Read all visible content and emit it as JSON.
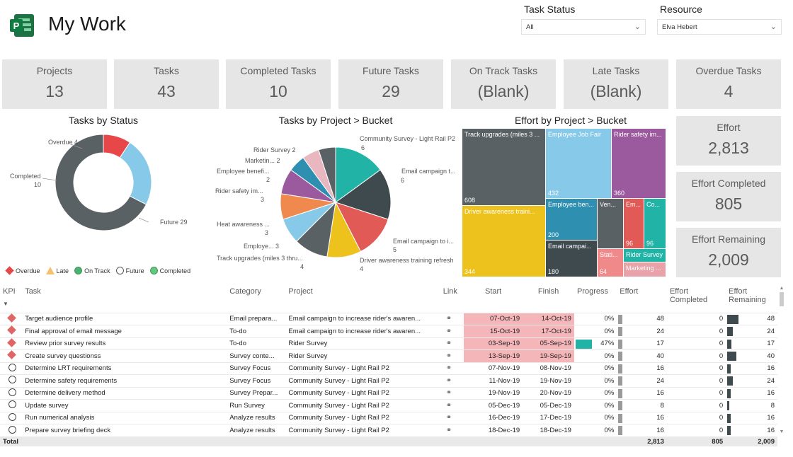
{
  "header": {
    "title": "My Work",
    "logo_icon": "project-logo-icon"
  },
  "filters": {
    "task_status": {
      "label": "Task Status",
      "value": "All"
    },
    "resource": {
      "label": "Resource",
      "value": "Elva Hebert"
    }
  },
  "kpi_cards": [
    {
      "label": "Projects",
      "value": "13"
    },
    {
      "label": "Tasks",
      "value": "43"
    },
    {
      "label": "Completed Tasks",
      "value": "10"
    },
    {
      "label": "Future Tasks",
      "value": "29"
    },
    {
      "label": "On Track Tasks",
      "value": "(Blank)"
    },
    {
      "label": "Late Tasks",
      "value": "(Blank)"
    },
    {
      "label": "Overdue Tasks",
      "value": "4"
    }
  ],
  "effort_cards": [
    {
      "label": "Effort",
      "value": "2,813"
    },
    {
      "label": "Effort Completed",
      "value": "805"
    },
    {
      "label": "Effort Remaining",
      "value": "2,009"
    }
  ],
  "donut": {
    "title": "Tasks by Status",
    "labels": [
      {
        "text": "Overdue 4"
      },
      {
        "text": "Completed"
      },
      {
        "text": "10"
      },
      {
        "text": "Future 29"
      }
    ],
    "legend": [
      {
        "label": "Overdue",
        "color": "#e8474a"
      },
      {
        "label": "Late",
        "color": "#f5c16c"
      },
      {
        "label": "On Track",
        "color": "#4caf74"
      },
      {
        "label": "Future",
        "color": "#ffffff"
      },
      {
        "label": "Completed",
        "color": "#63c77f"
      }
    ]
  },
  "pie": {
    "title": "Tasks by Project > Bucket",
    "labels": [
      "Community Survey - Light Rail P2",
      "6",
      "Rider Survey 2",
      "Marketin... 2",
      "Employee benefi...",
      "2",
      "Rider safety im...",
      "3",
      "Email campaign t...",
      "6",
      "Heat awareness ...",
      "3",
      "Employe... 3",
      "Track upgrades (miles 3 thru...",
      "4",
      "Email campaign to i...",
      "5",
      "Driver awareness training refresh",
      "4"
    ]
  },
  "treemap": {
    "title": "Effort by Project > Bucket",
    "cells": [
      {
        "label": "Track upgrades (miles 3 ...",
        "value": "608",
        "color": "#5a6164"
      },
      {
        "label": "Employee Job Fair",
        "value": "432",
        "color": "#87c9e8"
      },
      {
        "label": "Rider safety im...",
        "value": "360",
        "color": "#9b5a9d"
      },
      {
        "label": "Driver awareness traini...",
        "value": "344",
        "color": "#edc21c"
      },
      {
        "label": "Employee ben...",
        "value": "200",
        "color": "#2e8fb0"
      },
      {
        "label": "Ven...",
        "value": "",
        "color": "#5a6164"
      },
      {
        "label": "Em...",
        "value": "96",
        "color": "#e25a55"
      },
      {
        "label": "Co...",
        "value": "96",
        "color": "#22b3a7"
      },
      {
        "label": "Email campai...",
        "value": "180",
        "color": "#3f4a4e"
      },
      {
        "label": "Stati...",
        "value": "64",
        "color": "#f08a8a"
      },
      {
        "label": "Rider Survey",
        "value": "",
        "color": "#22b3a7"
      },
      {
        "label": "Marketing ...",
        "value": "",
        "color": "#e9a3a8"
      }
    ]
  },
  "table": {
    "columns": [
      "KPI",
      "Task",
      "Category",
      "Project",
      "Link",
      "Start",
      "Finish",
      "Progress",
      "Effort",
      "Effort Completed",
      "Effort Remaining"
    ],
    "sort_icon": "sort-desc-icon",
    "rows": [
      {
        "kpi": "overdue",
        "task": "Target audience profile",
        "category": "Email prepara...",
        "project": "Email campaign to increase rider's awaren...",
        "start": "07-Oct-19",
        "finish": "14-Oct-19",
        "late": true,
        "progress": "0%",
        "progress_value": 0,
        "effort": "48",
        "completed": "0",
        "remaining": "48"
      },
      {
        "kpi": "overdue",
        "task": "Final approval of email message",
        "category": "To-do",
        "project": "Email campaign to increase rider's awaren...",
        "start": "15-Oct-19",
        "finish": "17-Oct-19",
        "late": true,
        "progress": "0%",
        "progress_value": 0,
        "effort": "24",
        "completed": "0",
        "remaining": "24"
      },
      {
        "kpi": "overdue",
        "task": "Review prior survey results",
        "category": "To-do",
        "project": "Rider Survey",
        "start": "03-Sep-19",
        "finish": "05-Sep-19",
        "late": true,
        "progress": "47%",
        "progress_value": 47,
        "effort": "17",
        "completed": "0",
        "remaining": "17"
      },
      {
        "kpi": "overdue",
        "task": "Create survey questionss",
        "category": "Survey conte...",
        "project": "Rider Survey",
        "start": "13-Sep-19",
        "finish": "19-Sep-19",
        "late": true,
        "progress": "0%",
        "progress_value": 0,
        "effort": "40",
        "completed": "0",
        "remaining": "40"
      },
      {
        "kpi": "future",
        "task": "Determine LRT requirements",
        "category": "Survey Focus",
        "project": "Community Survey - Light Rail P2",
        "start": "07-Nov-19",
        "finish": "08-Nov-19",
        "late": false,
        "progress": "0%",
        "progress_value": 0,
        "effort": "16",
        "completed": "0",
        "remaining": "16"
      },
      {
        "kpi": "future",
        "task": "Determine safety requirements",
        "category": "Survey Focus",
        "project": "Community Survey - Light Rail P2",
        "start": "11-Nov-19",
        "finish": "19-Nov-19",
        "late": false,
        "progress": "0%",
        "progress_value": 0,
        "effort": "24",
        "completed": "0",
        "remaining": "24"
      },
      {
        "kpi": "future",
        "task": "Determine delivery method",
        "category": "Survey Prepar...",
        "project": "Community Survey - Light Rail P2",
        "start": "19-Nov-19",
        "finish": "20-Nov-19",
        "late": false,
        "progress": "0%",
        "progress_value": 0,
        "effort": "16",
        "completed": "0",
        "remaining": "16"
      },
      {
        "kpi": "future",
        "task": "Update survey",
        "category": "Run Survey",
        "project": "Community Survey - Light Rail P2",
        "start": "05-Dec-19",
        "finish": "05-Dec-19",
        "late": false,
        "progress": "0%",
        "progress_value": 0,
        "effort": "8",
        "completed": "0",
        "remaining": "8"
      },
      {
        "kpi": "future",
        "task": "Run numerical analysis",
        "category": "Analyze results",
        "project": "Community Survey - Light Rail P2",
        "start": "16-Dec-19",
        "finish": "17-Dec-19",
        "late": false,
        "progress": "0%",
        "progress_value": 0,
        "effort": "16",
        "completed": "0",
        "remaining": "16"
      },
      {
        "kpi": "future",
        "task": "Prepare survey briefing deck",
        "category": "Analyze results",
        "project": "Community Survey - Light Rail P2",
        "start": "18-Dec-19",
        "finish": "18-Dec-19",
        "late": false,
        "progress": "0%",
        "progress_value": 0,
        "effort": "16",
        "completed": "0",
        "remaining": "16"
      }
    ],
    "total": {
      "label": "Total",
      "effort": "2,813",
      "completed": "805",
      "remaining": "2,009"
    }
  },
  "chart_data": [
    {
      "type": "pie",
      "title": "Tasks by Status",
      "categories": [
        "Overdue",
        "Completed",
        "Future"
      ],
      "values": [
        4,
        10,
        29
      ],
      "colors": [
        "#e8474a",
        "#87c9e8",
        "#5a6164"
      ]
    },
    {
      "type": "pie",
      "title": "Tasks by Project > Bucket",
      "categories": [
        "Community Survey - Light Rail P2",
        "Email campaign t...",
        "Email campaign to i...",
        "Driver awareness training refresh",
        "Track upgrades (miles 3 thru...",
        "Employe...",
        "Heat awareness ...",
        "Rider safety im...",
        "Employee benefi...",
        "Marketin...",
        "Rider Survey"
      ],
      "values": [
        6,
        6,
        5,
        4,
        4,
        3,
        3,
        3,
        2,
        2,
        2
      ],
      "colors": [
        "#22b3a7",
        "#3f4a4e",
        "#e25a55",
        "#edc21c",
        "#5a6164",
        "#87c9e8",
        "#f0894d",
        "#9b5a9d",
        "#2e8fb0",
        "#e9b7bf",
        "#5a6164"
      ]
    }
  ]
}
